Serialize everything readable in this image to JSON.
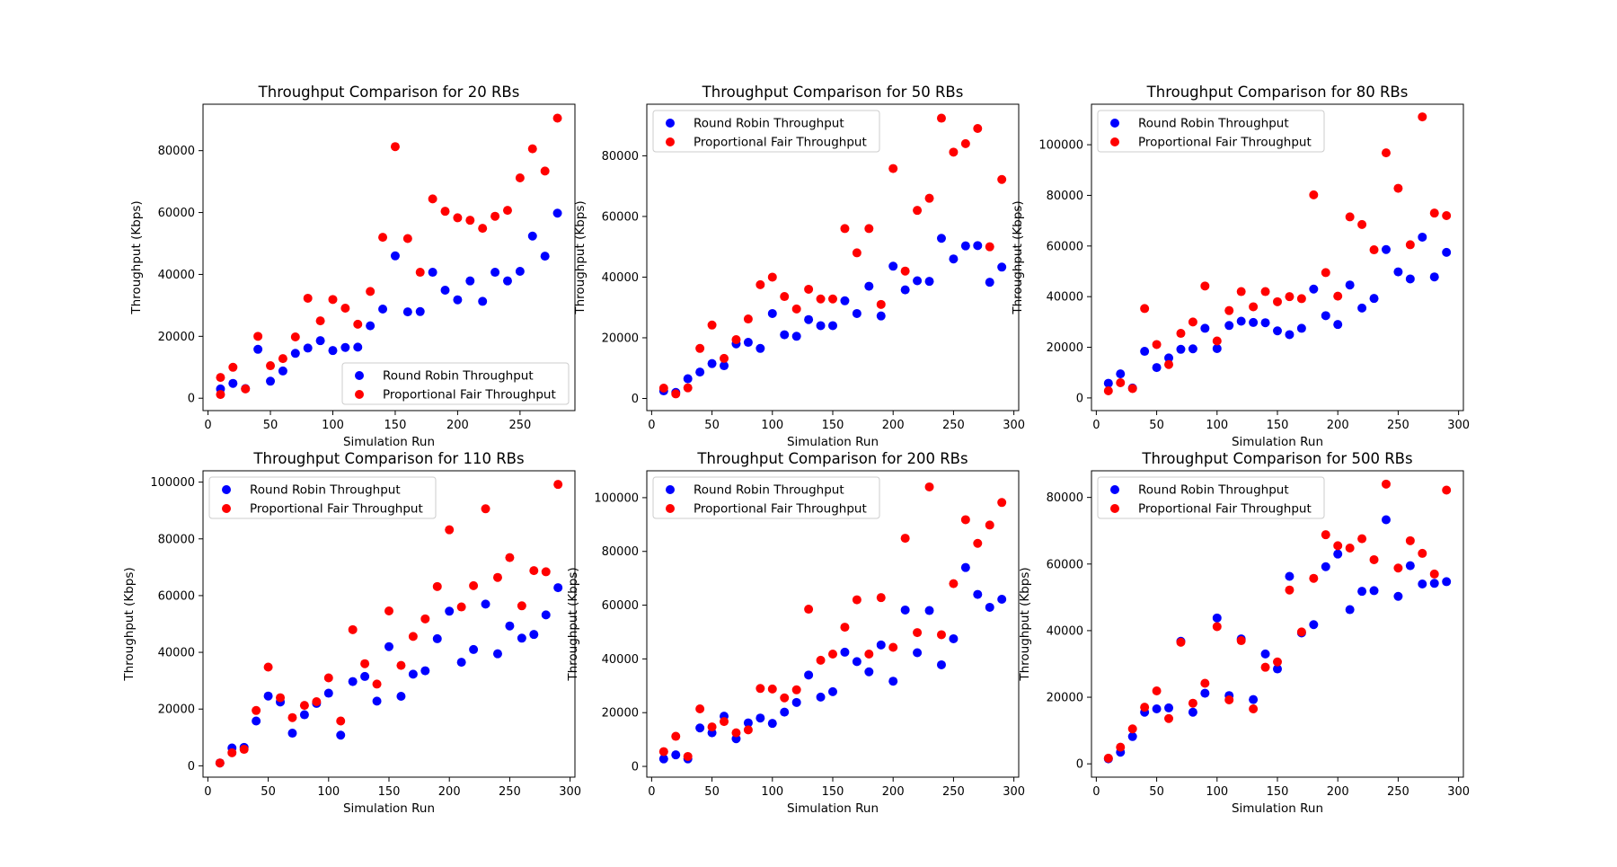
{
  "legend_labels": [
    "Round Robin Throughput",
    "Proportional Fair Throughput"
  ],
  "colors": {
    "rr": "#0000ff",
    "pf": "#ff0000"
  },
  "chart_data": [
    {
      "type": "scatter",
      "title": "Throughput Comparison for 20 RBs",
      "xlabel": "Simulation Run",
      "ylabel": "Throughput (Kbps)",
      "xlim": [
        -4,
        294
      ],
      "ylim": [
        -4000,
        95000
      ],
      "xticks": [
        0,
        50,
        100,
        150,
        200,
        250
      ],
      "yticks": [
        0,
        20000,
        40000,
        60000,
        80000
      ],
      "legend": "lower-right",
      "grid": false,
      "series": [
        {
          "name": "Round Robin Throughput",
          "color": "#0000ff",
          "x": [
            10,
            20,
            30,
            40,
            50,
            60,
            70,
            80,
            90,
            100,
            110,
            120,
            130,
            140,
            150,
            160,
            170,
            180,
            190,
            200,
            210,
            220,
            230,
            240,
            250,
            260,
            270,
            280
          ],
          "y": [
            3000,
            4800,
            3100,
            15800,
            5500,
            8800,
            14500,
            16200,
            18600,
            15400,
            16400,
            16500,
            23400,
            28800,
            46000,
            27900,
            28000,
            40700,
            34900,
            31800,
            37900,
            31300,
            40700,
            37900,
            41000,
            52400,
            45900,
            59800
          ]
        },
        {
          "name": "Proportional Fair Throughput",
          "color": "#ff0000",
          "x": [
            10,
            10,
            20,
            30,
            40,
            50,
            60,
            70,
            80,
            90,
            100,
            110,
            120,
            130,
            140,
            150,
            160,
            170,
            180,
            190,
            200,
            210,
            220,
            230,
            240,
            250,
            260,
            270,
            280
          ],
          "y": [
            1200,
            6700,
            10000,
            3000,
            20000,
            10500,
            12800,
            19800,
            32300,
            25000,
            31900,
            29100,
            23900,
            34500,
            52000,
            81300,
            51600,
            40700,
            64400,
            60400,
            58300,
            57500,
            54900,
            58800,
            60700,
            71200,
            80600,
            73400,
            90500
          ]
        }
      ]
    },
    {
      "type": "scatter",
      "title": "Throughput Comparison for 50 RBs",
      "xlabel": "Simulation Run",
      "ylabel": "Throughput (Kbps)",
      "xlim": [
        -4,
        304
      ],
      "ylim": [
        -4000,
        97000
      ],
      "xticks": [
        0,
        50,
        100,
        150,
        200,
        250,
        300
      ],
      "yticks": [
        0,
        20000,
        40000,
        60000,
        80000
      ],
      "legend": "upper-left",
      "grid": false,
      "series": [
        {
          "name": "Round Robin Throughput",
          "color": "#0000ff",
          "x": [
            10,
            20,
            30,
            40,
            50,
            60,
            70,
            80,
            90,
            100,
            110,
            120,
            130,
            140,
            150,
            160,
            170,
            180,
            190,
            200,
            210,
            220,
            230,
            240,
            250,
            260,
            270,
            280,
            290
          ],
          "y": [
            2500,
            2000,
            6500,
            8700,
            11500,
            10800,
            18000,
            18500,
            16500,
            28000,
            21000,
            20500,
            26000,
            24000,
            24000,
            32200,
            28000,
            37000,
            27200,
            43600,
            35800,
            38800,
            38600,
            52800,
            46000,
            50300,
            50400,
            38300,
            43300
          ]
        },
        {
          "name": "Proportional Fair Throughput",
          "color": "#ff0000",
          "x": [
            10,
            20,
            30,
            40,
            50,
            60,
            70,
            80,
            90,
            100,
            110,
            120,
            130,
            140,
            150,
            160,
            170,
            180,
            190,
            200,
            210,
            220,
            230,
            240,
            250,
            260,
            270,
            280,
            290
          ],
          "y": [
            3400,
            1500,
            3500,
            16500,
            24200,
            13200,
            19400,
            26200,
            37500,
            40000,
            33600,
            29500,
            36000,
            32800,
            32800,
            56000,
            48000,
            56000,
            31000,
            75800,
            42000,
            62000,
            66000,
            92400,
            81200,
            84000,
            89000,
            50000,
            72200
          ]
        }
      ]
    },
    {
      "type": "scatter",
      "title": "Throughput Comparison for 80 RBs",
      "xlabel": "Simulation Run",
      "ylabel": "Throughput (Kbps)",
      "xlim": [
        -4,
        304
      ],
      "ylim": [
        -5000,
        116000
      ],
      "xticks": [
        0,
        50,
        100,
        150,
        200,
        250,
        300
      ],
      "yticks": [
        0,
        20000,
        40000,
        60000,
        80000,
        100000
      ],
      "legend": "upper-left",
      "grid": false,
      "series": [
        {
          "name": "Round Robin Throughput",
          "color": "#0000ff",
          "x": [
            10,
            20,
            30,
            40,
            50,
            60,
            70,
            80,
            90,
            100,
            110,
            120,
            130,
            140,
            150,
            160,
            170,
            180,
            190,
            200,
            210,
            220,
            230,
            240,
            250,
            260,
            270,
            280,
            290
          ],
          "y": [
            5800,
            9500,
            3900,
            18400,
            12000,
            15800,
            19200,
            19400,
            27500,
            19500,
            28600,
            30300,
            29800,
            29700,
            26500,
            25000,
            27500,
            43000,
            32500,
            29000,
            44600,
            35500,
            39300,
            58600,
            49800,
            47000,
            63500,
            47800,
            57500
          ]
        },
        {
          "name": "Proportional Fair Throughput",
          "color": "#ff0000",
          "x": [
            10,
            20,
            30,
            40,
            50,
            60,
            70,
            80,
            90,
            100,
            110,
            120,
            130,
            140,
            150,
            160,
            170,
            180,
            190,
            200,
            210,
            220,
            230,
            240,
            250,
            260,
            270,
            280,
            290
          ],
          "y": [
            2800,
            6000,
            3700,
            35300,
            21100,
            13200,
            25500,
            30000,
            44200,
            22500,
            34500,
            42000,
            36000,
            42000,
            38000,
            40000,
            39200,
            80200,
            49500,
            40200,
            71500,
            68500,
            58500,
            96800,
            82800,
            60500,
            111000,
            73000,
            72000
          ]
        }
      ]
    },
    {
      "type": "scatter",
      "title": "Throughput Comparison for 110 RBs",
      "xlabel": "Simulation Run",
      "ylabel": "Throughput (Kbps)",
      "xlim": [
        -4,
        304
      ],
      "ylim": [
        -4000,
        104000
      ],
      "xticks": [
        0,
        50,
        100,
        150,
        200,
        250,
        300
      ],
      "yticks": [
        0,
        20000,
        40000,
        60000,
        80000,
        100000
      ],
      "legend": "upper-left",
      "grid": false,
      "series": [
        {
          "name": "Round Robin Throughput",
          "color": "#0000ff",
          "x": [
            10,
            20,
            30,
            40,
            50,
            60,
            70,
            80,
            90,
            100,
            110,
            120,
            130,
            140,
            150,
            160,
            170,
            180,
            190,
            200,
            210,
            220,
            230,
            240,
            250,
            260,
            270,
            280,
            290
          ],
          "y": [
            1000,
            6300,
            6500,
            15800,
            24600,
            22500,
            11500,
            18000,
            22000,
            25600,
            10800,
            29700,
            31500,
            22800,
            42000,
            24500,
            32300,
            33500,
            44800,
            54500,
            36500,
            41000,
            57000,
            39500,
            49300,
            45000,
            46300,
            53200,
            62800
          ]
        },
        {
          "name": "Proportional Fair Throughput",
          "color": "#ff0000",
          "x": [
            10,
            20,
            30,
            40,
            50,
            60,
            70,
            80,
            90,
            100,
            110,
            120,
            130,
            140,
            150,
            160,
            170,
            180,
            190,
            200,
            210,
            220,
            230,
            240,
            250,
            260,
            270,
            280,
            290
          ],
          "y": [
            1000,
            4600,
            5800,
            19500,
            34800,
            24000,
            17000,
            21300,
            22600,
            31000,
            15800,
            48000,
            36000,
            28800,
            54600,
            35400,
            45600,
            51800,
            63200,
            83200,
            56000,
            63500,
            90600,
            66400,
            73400,
            56400,
            68800,
            68400,
            99200
          ]
        }
      ]
    },
    {
      "type": "scatter",
      "title": "Throughput Comparison for 200 RBs",
      "xlabel": "Simulation Run",
      "ylabel": "Throughput (Kbps)",
      "xlim": [
        -4,
        304
      ],
      "ylim": [
        -4000,
        110000
      ],
      "xticks": [
        0,
        50,
        100,
        150,
        200,
        250,
        300
      ],
      "yticks": [
        0,
        20000,
        40000,
        60000,
        80000,
        100000
      ],
      "legend": "upper-left",
      "grid": false,
      "series": [
        {
          "name": "Round Robin Throughput",
          "color": "#0000ff",
          "x": [
            10,
            20,
            30,
            40,
            50,
            60,
            70,
            80,
            90,
            100,
            110,
            120,
            130,
            140,
            150,
            160,
            170,
            180,
            190,
            200,
            210,
            220,
            230,
            240,
            250,
            260,
            270,
            280,
            290
          ],
          "y": [
            2800,
            4300,
            2800,
            14300,
            12500,
            18700,
            10300,
            16200,
            18000,
            16000,
            20200,
            23800,
            34000,
            25800,
            27800,
            42500,
            39000,
            35200,
            45200,
            31700,
            58200,
            42300,
            58000,
            37800,
            47500,
            74000,
            64000,
            59200,
            62200
          ]
        },
        {
          "name": "Proportional Fair Throughput",
          "color": "#ff0000",
          "x": [
            10,
            20,
            30,
            40,
            50,
            60,
            70,
            80,
            90,
            100,
            110,
            120,
            130,
            140,
            150,
            160,
            170,
            180,
            190,
            200,
            210,
            220,
            230,
            240,
            250,
            260,
            270,
            280,
            290
          ],
          "y": [
            5500,
            11200,
            3700,
            21400,
            14700,
            16700,
            12500,
            13600,
            29000,
            28800,
            25500,
            28500,
            58500,
            39500,
            41800,
            51800,
            62000,
            41800,
            62800,
            44300,
            84900,
            49800,
            104000,
            49000,
            68000,
            91800,
            83000,
            89800,
            98200
          ]
        }
      ]
    },
    {
      "type": "scatter",
      "title": "Throughput Comparison for 500 RBs",
      "xlabel": "Simulation Run",
      "ylabel": "Throughput (Kbps)",
      "xlim": [
        -4,
        304
      ],
      "ylim": [
        -4000,
        88000
      ],
      "xticks": [
        0,
        50,
        100,
        150,
        200,
        250,
        300
      ],
      "yticks": [
        0,
        20000,
        40000,
        60000,
        80000
      ],
      "legend": "upper-left",
      "grid": false,
      "series": [
        {
          "name": "Round Robin Throughput",
          "color": "#0000ff",
          "x": [
            10,
            20,
            30,
            40,
            50,
            60,
            70,
            80,
            90,
            100,
            110,
            120,
            130,
            140,
            150,
            160,
            170,
            180,
            190,
            200,
            210,
            220,
            230,
            240,
            250,
            260,
            270,
            280,
            290
          ],
          "y": [
            1500,
            3500,
            8200,
            15500,
            16500,
            16800,
            36800,
            15500,
            21200,
            43800,
            20500,
            37500,
            19300,
            33000,
            28500,
            56300,
            39300,
            41800,
            59200,
            63000,
            46300,
            51800,
            52000,
            73300,
            50300,
            59500,
            54000,
            54200,
            54700
          ]
        },
        {
          "name": "Proportional Fair Throughput",
          "color": "#ff0000",
          "x": [
            10,
            20,
            30,
            40,
            50,
            60,
            70,
            80,
            90,
            100,
            110,
            120,
            130,
            140,
            150,
            160,
            170,
            180,
            190,
            200,
            210,
            220,
            230,
            240,
            250,
            260,
            270,
            280,
            290
          ],
          "y": [
            1700,
            5000,
            10500,
            17000,
            21900,
            13600,
            36500,
            18200,
            24200,
            41200,
            19200,
            37000,
            16500,
            29000,
            30600,
            52200,
            39600,
            55700,
            68800,
            65500,
            64800,
            67600,
            61300,
            84000,
            58800,
            67000,
            63200,
            57000,
            82200
          ]
        }
      ]
    }
  ]
}
